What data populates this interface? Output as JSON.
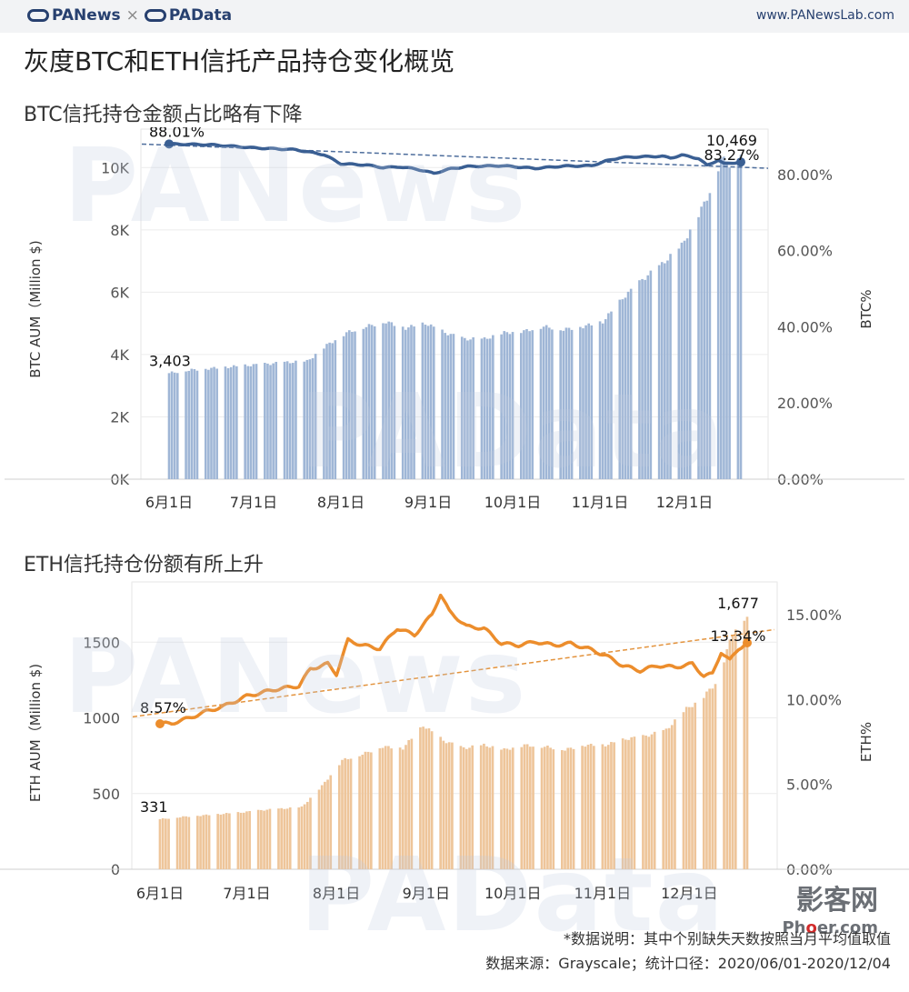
{
  "header": {
    "brand_left": "PANews",
    "brand_sep": "×",
    "brand_right": "PAData",
    "site": "www.PANewsLab.com"
  },
  "title": "灰度BTC和ETH信托产品持仓变化概览",
  "watermark": {
    "top": "PANews",
    "bottom": "PAData"
  },
  "stamp": {
    "main": "影客网",
    "sub_a": "Ph",
    "sub_dot": "o",
    "sub_b": "er.com"
  },
  "footer": {
    "note": "*数据说明：其中个别缺失天数按照当月平均值取值",
    "source": "数据来源：Grayscale；统计口径：2020/06/01-2020/12/04"
  },
  "chart_data": [
    {
      "id": "btc",
      "type": "bar",
      "subtitle": "BTC信托持仓金额占比略有下降",
      "ylabel": "BTC AUM（Million $)",
      "y2label": "BTC%",
      "ylim": [
        0,
        11000
      ],
      "y2lim": [
        0,
        90
      ],
      "yticks": [
        0,
        2000,
        4000,
        6000,
        8000,
        10000
      ],
      "ytick_labels": [
        "0K",
        "2K",
        "4K",
        "6K",
        "8K",
        "10K"
      ],
      "y2ticks": [
        0,
        20,
        40,
        60,
        80
      ],
      "y2tick_labels": [
        "0.00%",
        "20.00%",
        "40.00%",
        "60.00%",
        "80.00%"
      ],
      "xticks": [
        "6月1日",
        "7月1日",
        "8月1日",
        "9月1日",
        "10月1日",
        "11月1日",
        "12月1日"
      ],
      "dates_start": "2020-06-01",
      "bar_color": "#9fb6d6",
      "line_color": "#3a5f93",
      "trend_color": "#4d6d9c",
      "bar_anchors": [
        [
          0,
          3403
        ],
        [
          7,
          3500
        ],
        [
          14,
          3550
        ],
        [
          21,
          3600
        ],
        [
          28,
          3650
        ],
        [
          35,
          3700
        ],
        [
          42,
          3750
        ],
        [
          49,
          3780
        ],
        [
          56,
          4300
        ],
        [
          63,
          4700
        ],
        [
          70,
          4900
        ],
        [
          77,
          5050
        ],
        [
          84,
          4850
        ],
        [
          91,
          5000
        ],
        [
          98,
          4700
        ],
        [
          105,
          4500
        ],
        [
          112,
          4500
        ],
        [
          119,
          4700
        ],
        [
          126,
          4750
        ],
        [
          133,
          4900
        ],
        [
          140,
          4800
        ],
        [
          147,
          4900
        ],
        [
          154,
          5050
        ],
        [
          161,
          5800
        ],
        [
          168,
          6400
        ],
        [
          175,
          6900
        ],
        [
          182,
          7500
        ],
        [
          187,
          8300
        ],
        [
          193,
          9400
        ],
        [
          196,
          10300
        ],
        [
          199,
          10100
        ],
        [
          203,
          10469
        ]
      ],
      "line_anchors": [
        [
          0,
          88.01
        ],
        [
          15,
          87.8
        ],
        [
          30,
          87.0
        ],
        [
          45,
          86.5
        ],
        [
          55,
          85.2
        ],
        [
          61,
          82.8
        ],
        [
          70,
          82.5
        ],
        [
          76,
          81.8
        ],
        [
          82,
          82.0
        ],
        [
          88,
          81.4
        ],
        [
          94,
          80.3
        ],
        [
          100,
          81.5
        ],
        [
          106,
          82.1
        ],
        [
          118,
          82.3
        ],
        [
          130,
          81.6
        ],
        [
          140,
          82.2
        ],
        [
          150,
          82.3
        ],
        [
          155,
          83.5
        ],
        [
          160,
          84.4
        ],
        [
          165,
          84.6
        ],
        [
          170,
          84.7
        ],
        [
          175,
          84.8
        ],
        [
          178,
          84.3
        ],
        [
          182,
          85.1
        ],
        [
          188,
          84.2
        ],
        [
          191,
          82.4
        ],
        [
          195,
          83.8
        ],
        [
          197,
          82.8
        ],
        [
          203,
          83.27
        ]
      ],
      "trend_line": [
        [
          0,
          87.7
        ],
        [
          203,
          81.9
        ]
      ],
      "annotations": [
        {
          "text": "3,403",
          "day": 0,
          "value": 3403,
          "axis": "left"
        },
        {
          "text": "10,469",
          "day": 203,
          "value": 10469,
          "axis": "left"
        },
        {
          "text": "88.01%",
          "day": 0,
          "value": 88.01,
          "axis": "right"
        },
        {
          "text": "83.27%",
          "day": 203,
          "value": 83.27,
          "axis": "right"
        }
      ]
    },
    {
      "id": "eth",
      "type": "bar",
      "subtitle": "ETH信托持仓份额有所上升",
      "ylabel": "ETH AUM（Million $)",
      "y2label": "ETH%",
      "ylim": [
        0,
        1850
      ],
      "y2lim": [
        0,
        16.5
      ],
      "yticks": [
        0,
        500,
        1000,
        1500
      ],
      "ytick_labels": [
        "0",
        "500",
        "1000",
        "1500"
      ],
      "y2ticks": [
        0,
        5,
        10,
        15
      ],
      "y2tick_labels": [
        "0.00%",
        "5.00%",
        "10.00%",
        "15.00%"
      ],
      "xticks": [
        "6月1日",
        "7月1日",
        "8月1日",
        "9月1日",
        "10月1日",
        "11月1日",
        "12月1日"
      ],
      "dates_start": "2020-06-01",
      "bar_color": "#eec59a",
      "line_color": "#ec8d2c",
      "trend_color": "#e3933d",
      "bar_anchors": [
        [
          0,
          331
        ],
        [
          7,
          345
        ],
        [
          14,
          355
        ],
        [
          21,
          365
        ],
        [
          28,
          375
        ],
        [
          35,
          390
        ],
        [
          42,
          400
        ],
        [
          49,
          410
        ],
        [
          56,
          550
        ],
        [
          63,
          720
        ],
        [
          70,
          760
        ],
        [
          77,
          810
        ],
        [
          84,
          800
        ],
        [
          91,
          950
        ],
        [
          98,
          850
        ],
        [
          105,
          800
        ],
        [
          112,
          820
        ],
        [
          119,
          790
        ],
        [
          126,
          820
        ],
        [
          133,
          810
        ],
        [
          140,
          790
        ],
        [
          147,
          820
        ],
        [
          154,
          820
        ],
        [
          161,
          860
        ],
        [
          168,
          880
        ],
        [
          175,
          920
        ],
        [
          182,
          1060
        ],
        [
          187,
          1120
        ],
        [
          193,
          1250
        ],
        [
          196,
          1450
        ],
        [
          199,
          1600
        ],
        [
          203,
          1677
        ]
      ],
      "line_anchors": [
        [
          0,
          8.57
        ],
        [
          4,
          8.6
        ],
        [
          10,
          8.9
        ],
        [
          16,
          9.3
        ],
        [
          22,
          9.6
        ],
        [
          30,
          10.2
        ],
        [
          40,
          10.6
        ],
        [
          48,
          10.8
        ],
        [
          52,
          11.8
        ],
        [
          58,
          12.1
        ],
        [
          61,
          11.5
        ],
        [
          65,
          13.5
        ],
        [
          70,
          13.2
        ],
        [
          76,
          13.0
        ],
        [
          82,
          14.2
        ],
        [
          88,
          13.8
        ],
        [
          94,
          15.0
        ],
        [
          97,
          16.2
        ],
        [
          100,
          15.2
        ],
        [
          106,
          14.3
        ],
        [
          112,
          14.2
        ],
        [
          118,
          13.3
        ],
        [
          124,
          13.2
        ],
        [
          130,
          13.4
        ],
        [
          136,
          13.2
        ],
        [
          142,
          13.3
        ],
        [
          148,
          13.0
        ],
        [
          154,
          12.6
        ],
        [
          160,
          12.0
        ],
        [
          166,
          11.7
        ],
        [
          172,
          12.0
        ],
        [
          178,
          11.9
        ],
        [
          184,
          12.1
        ],
        [
          188,
          11.4
        ],
        [
          191,
          11.5
        ],
        [
          194,
          12.8
        ],
        [
          197,
          12.3
        ],
        [
          200,
          13.0
        ],
        [
          203,
          13.34
        ]
      ],
      "trend_line": [
        [
          0,
          9.2
        ],
        [
          203,
          13.9
        ]
      ],
      "annotations": [
        {
          "text": "331",
          "day": 0,
          "value": 331,
          "axis": "left"
        },
        {
          "text": "1,677",
          "day": 203,
          "value": 1677,
          "axis": "left"
        },
        {
          "text": "8.57%",
          "day": 0,
          "value": 8.57,
          "axis": "right"
        },
        {
          "text": "13.34%",
          "day": 203,
          "value": 13.34,
          "axis": "right"
        }
      ]
    }
  ]
}
